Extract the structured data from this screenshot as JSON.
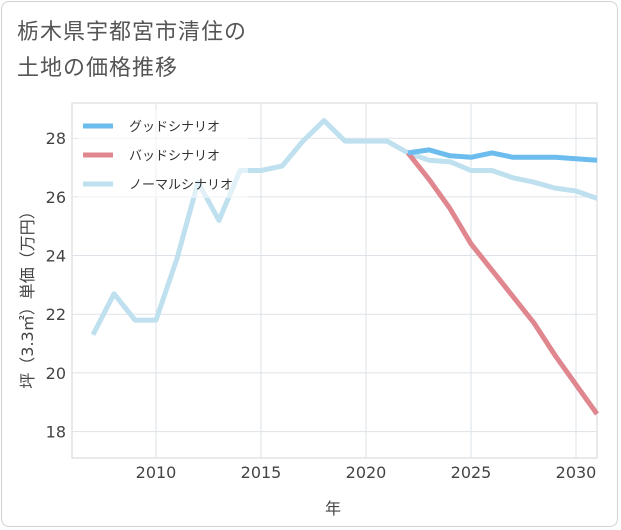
{
  "title": {
    "line1": "栃木県宇都宮市清住の",
    "line2": "土地の価格推移"
  },
  "chart_data": {
    "type": "line",
    "xlabel": "年",
    "ylabel": "坪（3.3㎡）単価（万円）",
    "xlim": [
      2006,
      2031
    ],
    "ylim": [
      17.1,
      29.2
    ],
    "xticks": [
      2010,
      2015,
      2020,
      2025,
      2030
    ],
    "yticks": [
      18,
      20,
      22,
      24,
      26,
      28
    ],
    "grid": true,
    "legend_position": "top-left",
    "series": [
      {
        "name": "グッドシナリオ",
        "color": "#6dbcee",
        "x": [
          2022,
          2023,
          2024,
          2025,
          2026,
          2027,
          2028,
          2029,
          2030,
          2031
        ],
        "y": [
          27.5,
          27.6,
          27.4,
          27.35,
          27.5,
          27.35,
          27.35,
          27.35,
          27.3,
          27.25
        ]
      },
      {
        "name": "バッドシナリオ",
        "color": "#e0868f",
        "x": [
          2022,
          2023,
          2024,
          2025,
          2026,
          2027,
          2028,
          2029,
          2030,
          2031
        ],
        "y": [
          27.5,
          26.6,
          25.6,
          24.4,
          23.5,
          22.6,
          21.7,
          20.6,
          19.6,
          18.6
        ]
      },
      {
        "name": "ノーマルシナリオ",
        "color": "#bfe0ee",
        "x": [
          2007,
          2008,
          2009,
          2010,
          2011,
          2012,
          2013,
          2014,
          2015,
          2016,
          2017,
          2018,
          2019,
          2020,
          2021,
          2022,
          2023,
          2024,
          2025,
          2026,
          2027,
          2028,
          2029,
          2030,
          2031
        ],
        "y": [
          21.3,
          22.7,
          21.8,
          21.8,
          23.9,
          26.5,
          25.2,
          26.9,
          26.9,
          27.05,
          27.9,
          28.6,
          27.9,
          27.9,
          27.9,
          27.5,
          27.25,
          27.2,
          26.9,
          26.9,
          26.65,
          26.5,
          26.3,
          26.2,
          25.95
        ]
      }
    ]
  }
}
